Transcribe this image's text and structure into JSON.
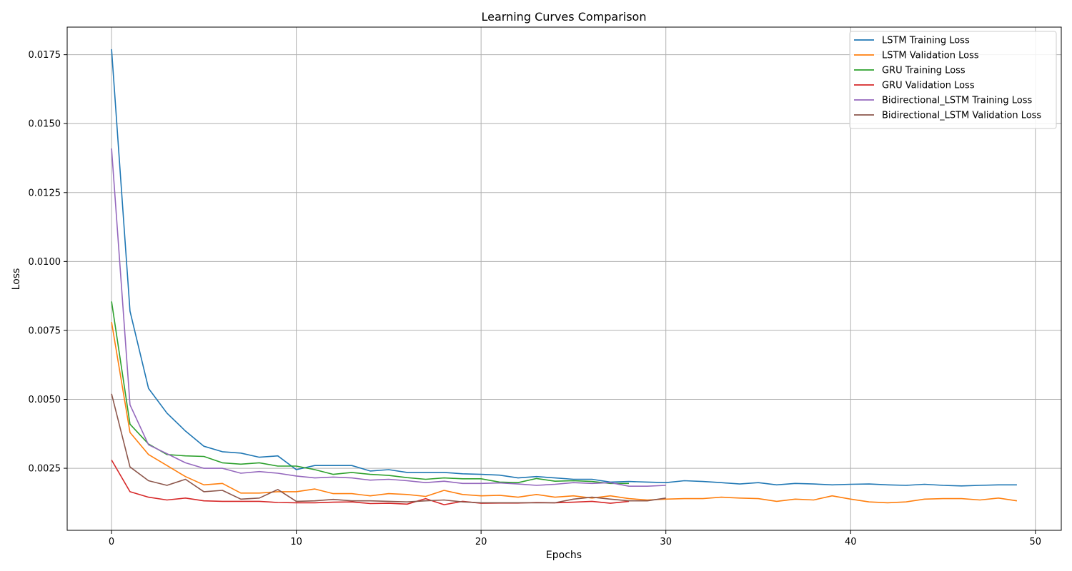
{
  "chart_data": {
    "type": "line",
    "title": "Learning Curves Comparison",
    "xlabel": "Epochs",
    "ylabel": "Loss",
    "xlim": [
      -2.4,
      51.4
    ],
    "ylim": [
      0.00025,
      0.0185
    ],
    "xticks": [
      0,
      10,
      20,
      30,
      40,
      50
    ],
    "yticks": [
      0.0025,
      0.005,
      0.0075,
      0.01,
      0.0125,
      0.015,
      0.0175
    ],
    "ytick_labels": [
      "0.0025",
      "0.0050",
      "0.0075",
      "0.0100",
      "0.0125",
      "0.0150",
      "0.0175"
    ],
    "grid": true,
    "legend_position": "top-right",
    "series": [
      {
        "name": "LSTM Training Loss",
        "color": "#1f77b4",
        "values": [
          0.0177,
          0.0082,
          0.0054,
          0.0045,
          0.00385,
          0.0033,
          0.0031,
          0.00305,
          0.0029,
          0.00295,
          0.00245,
          0.0026,
          0.0026,
          0.0026,
          0.0024,
          0.00245,
          0.00235,
          0.00235,
          0.00235,
          0.0023,
          0.00228,
          0.00225,
          0.00215,
          0.0022,
          0.00215,
          0.0021,
          0.0021,
          0.002,
          0.00202,
          0.002,
          0.00198,
          0.00205,
          0.00202,
          0.00198,
          0.00193,
          0.00198,
          0.0019,
          0.00195,
          0.00193,
          0.0019,
          0.00192,
          0.00193,
          0.0019,
          0.00188,
          0.00192,
          0.00188,
          0.00186,
          0.00188,
          0.0019,
          0.0019
        ]
      },
      {
        "name": "LSTM Validation Loss",
        "color": "#ff7f0e",
        "values": [
          0.0078,
          0.0038,
          0.003,
          0.0026,
          0.0022,
          0.0019,
          0.00195,
          0.0016,
          0.0016,
          0.00165,
          0.00165,
          0.00175,
          0.00158,
          0.00158,
          0.0015,
          0.00158,
          0.00155,
          0.00148,
          0.0017,
          0.00155,
          0.0015,
          0.00152,
          0.00145,
          0.00155,
          0.00145,
          0.0015,
          0.00142,
          0.0015,
          0.0014,
          0.00135,
          0.00138,
          0.0014,
          0.0014,
          0.00145,
          0.00142,
          0.0014,
          0.0013,
          0.00138,
          0.00135,
          0.0015,
          0.00138,
          0.00128,
          0.00125,
          0.00128,
          0.00138,
          0.0014,
          0.0014,
          0.00135,
          0.00142,
          0.00132
        ]
      },
      {
        "name": "GRU Training Loss",
        "color": "#2ca02c",
        "values": [
          0.00855,
          0.0041,
          0.00338,
          0.003,
          0.00295,
          0.00293,
          0.0027,
          0.00265,
          0.0027,
          0.00258,
          0.00258,
          0.00245,
          0.00228,
          0.00235,
          0.00228,
          0.00224,
          0.00216,
          0.0021,
          0.00215,
          0.00212,
          0.00212,
          0.002,
          0.00198,
          0.00213,
          0.00203,
          0.00205,
          0.00202,
          0.00195,
          0.00195
        ]
      },
      {
        "name": "GRU Validation Loss",
        "color": "#d62728",
        "values": [
          0.0028,
          0.00165,
          0.00145,
          0.00135,
          0.00142,
          0.00132,
          0.0013,
          0.0013,
          0.0013,
          0.00126,
          0.00125,
          0.00125,
          0.00127,
          0.00128,
          0.00122,
          0.00123,
          0.0012,
          0.0014,
          0.00118,
          0.0013,
          0.00123,
          0.00124,
          0.00124,
          0.00126,
          0.00125,
          0.00127,
          0.0013,
          0.00123,
          0.0013
        ]
      },
      {
        "name": "Bidirectional_LSTM Training Loss",
        "color": "#9467bd",
        "values": [
          0.0141,
          0.0048,
          0.00335,
          0.00303,
          0.0027,
          0.0025,
          0.0025,
          0.00232,
          0.00238,
          0.00232,
          0.00222,
          0.00215,
          0.00218,
          0.00215,
          0.00207,
          0.0021,
          0.00205,
          0.00198,
          0.00203,
          0.00195,
          0.00195,
          0.00197,
          0.00193,
          0.00188,
          0.00192,
          0.00198,
          0.00195,
          0.00198,
          0.00185,
          0.00185,
          0.00188
        ]
      },
      {
        "name": "Bidirectional_LSTM Validation Loss",
        "color": "#8c564b",
        "values": [
          0.0052,
          0.00255,
          0.00205,
          0.00188,
          0.0021,
          0.00165,
          0.0017,
          0.00138,
          0.00142,
          0.00173,
          0.0013,
          0.00132,
          0.00137,
          0.00132,
          0.00132,
          0.0013,
          0.00128,
          0.00132,
          0.00135,
          0.00128,
          0.00125,
          0.00125,
          0.00125,
          0.00125,
          0.00125,
          0.00138,
          0.00145,
          0.00138,
          0.00132,
          0.00132,
          0.00142
        ]
      }
    ]
  }
}
